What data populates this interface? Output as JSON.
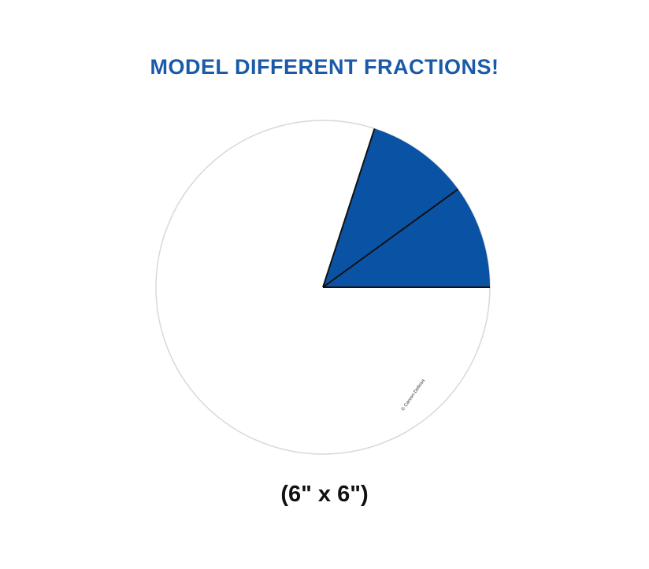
{
  "headline": "MODEL DIFFERENT FRACTIONS!",
  "size_caption": "(6\" x 6\")",
  "copyright": "© Carson-Dellosa",
  "fraction_circle": {
    "total_slices": 10,
    "shaded_slices": 2,
    "shade_color": "#0a52a3",
    "outline_color": "#d8d8d8",
    "divider_color": "#111111"
  }
}
